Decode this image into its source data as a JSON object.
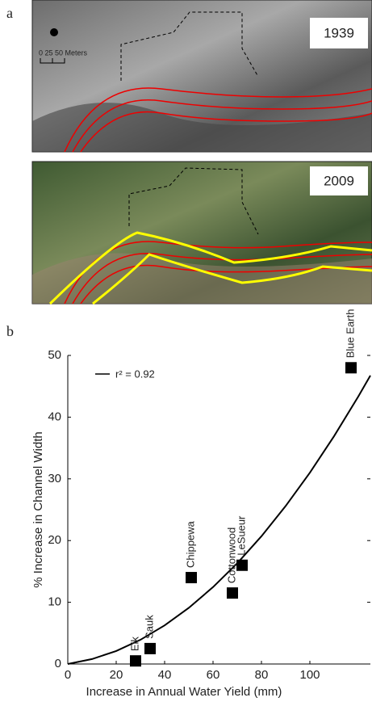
{
  "panel_a": {
    "label": "a",
    "photos": [
      {
        "year": "1939"
      },
      {
        "year": "2009"
      }
    ],
    "scale_label": "0  25  50 Meters"
  },
  "chart_data": {
    "type": "scatter",
    "panel_label": "b",
    "xlabel": "Increase in Annual Water Yield (mm)",
    "ylabel": "% Increase in Channel Width",
    "x": [
      28,
      34,
      51,
      68,
      72,
      117
    ],
    "values": [
      0.5,
      2.5,
      14,
      11.5,
      16,
      48
    ],
    "point_labels": [
      "Elk",
      "Sauk",
      "Chippewa",
      "Cottonwood",
      "LeSueur",
      "Blue Earth"
    ],
    "color": "#000000",
    "fit": {
      "name": "r² = 0.92",
      "color": "#000000",
      "x": [
        0,
        10,
        20,
        30,
        40,
        50,
        60,
        70,
        80,
        90,
        100,
        110,
        120,
        125
      ],
      "values": [
        0,
        0.8,
        2.1,
        3.92,
        6.26,
        9.1,
        12.46,
        16.32,
        20.7,
        25.6,
        31.0,
        36.92,
        43.34,
        46.75
      ]
    },
    "xlim": [
      0,
      125
    ],
    "ylim": [
      0,
      50
    ],
    "xticks": [
      0,
      20,
      40,
      60,
      80,
      100
    ],
    "yticks": [
      0,
      10,
      20,
      30,
      40,
      50
    ],
    "grid": false
  }
}
